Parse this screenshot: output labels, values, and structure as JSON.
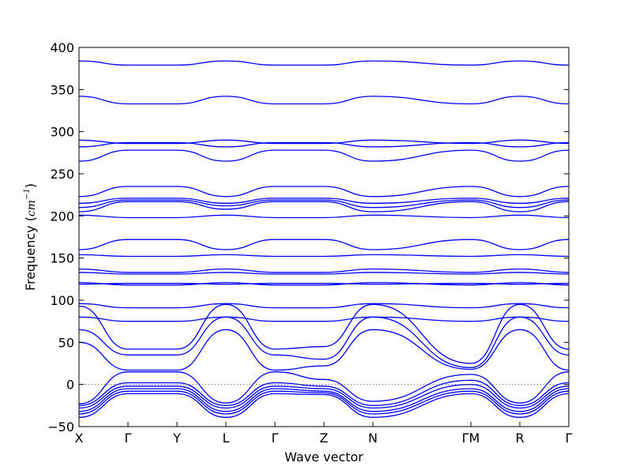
{
  "chart_data": {
    "type": "line",
    "title": "",
    "xlabel": "Wave vector",
    "ylabel_prefix": "Frequency (",
    "ylabel_unit_base": "cm",
    "ylabel_unit_exp": "−1",
    "ylabel_suffix": ")",
    "ylim": [
      -50,
      400
    ],
    "yticks": [
      -50,
      0,
      50,
      100,
      150,
      200,
      250,
      300,
      350,
      400
    ],
    "ytick_labels": [
      "−50",
      "0",
      "50",
      "100",
      "150",
      "200",
      "250",
      "300",
      "350",
      "400"
    ],
    "grid": false,
    "zero_line": true,
    "line_color": "#0000ff",
    "xpoints": [
      {
        "label": "X",
        "x": 0.0
      },
      {
        "label": "Γ",
        "x": 0.1
      },
      {
        "label": "Y",
        "x": 0.2
      },
      {
        "label": "L",
        "x": 0.3
      },
      {
        "label": "Γ",
        "x": 0.4
      },
      {
        "label": "Z",
        "x": 0.5
      },
      {
        "label": "N",
        "x": 0.6
      },
      {
        "label": "ΓM",
        "x": 0.8
      },
      {
        "label": "R",
        "x": 0.9
      },
      {
        "label": "Γ",
        "x": 1.0
      }
    ],
    "series": [
      {
        "values": [
          384,
          379,
          379,
          384,
          379,
          379,
          384,
          379,
          384,
          379
        ]
      },
      {
        "values": [
          342,
          333,
          333,
          342,
          333,
          333,
          342,
          333,
          342,
          333
        ]
      },
      {
        "values": [
          290,
          286,
          286,
          290,
          286,
          286,
          290,
          286,
          290,
          286
        ]
      },
      {
        "values": [
          282,
          287,
          287,
          282,
          287,
          287,
          282,
          287,
          282,
          287
        ]
      },
      {
        "values": [
          265,
          278,
          278,
          265,
          278,
          278,
          265,
          278,
          265,
          278
        ]
      },
      {
        "values": [
          223,
          235,
          235,
          223,
          235,
          235,
          223,
          235,
          223,
          235
        ]
      },
      {
        "values": [
          215,
          221,
          221,
          215,
          221,
          221,
          215,
          221,
          215,
          221
        ]
      },
      {
        "values": [
          210,
          219,
          219,
          212,
          219,
          219,
          210,
          219,
          210,
          219
        ]
      },
      {
        "values": [
          205,
          217,
          217,
          208,
          217,
          217,
          205,
          217,
          205,
          217
        ]
      },
      {
        "values": [
          201,
          198,
          198,
          201,
          198,
          198,
          201,
          198,
          201,
          198
        ]
      },
      {
        "values": [
          160,
          172,
          172,
          160,
          172,
          172,
          160,
          172,
          160,
          172
        ]
      },
      {
        "values": [
          154,
          152,
          152,
          154,
          152,
          152,
          154,
          152,
          154,
          152
        ]
      },
      {
        "values": [
          137,
          133,
          133,
          137,
          133,
          133,
          137,
          133,
          137,
          133
        ]
      },
      {
        "values": [
          133,
          131,
          131,
          133,
          131,
          131,
          133,
          131,
          133,
          131
        ]
      },
      {
        "values": [
          121,
          118,
          118,
          121,
          118,
          118,
          121,
          118,
          121,
          118
        ]
      },
      {
        "values": [
          119,
          120,
          120,
          119,
          120,
          120,
          119,
          120,
          119,
          120
        ]
      },
      {
        "values": [
          96,
          91,
          91,
          96,
          91,
          91,
          96,
          91,
          96,
          91
        ]
      },
      {
        "values": [
          80,
          75,
          75,
          80,
          75,
          75,
          80,
          75,
          80,
          75
        ]
      },
      {
        "values": [
          93,
          42,
          42,
          95,
          42,
          45,
          95,
          25,
          95,
          42
        ]
      },
      {
        "values": [
          65,
          35,
          35,
          80,
          35,
          30,
          80,
          20,
          80,
          35
        ]
      },
      {
        "values": [
          50,
          17,
          17,
          65,
          17,
          22,
          65,
          18,
          65,
          17
        ]
      },
      {
        "values": [
          -23,
          15,
          15,
          -22,
          15,
          6,
          -20,
          12,
          -22,
          15
        ]
      },
      {
        "values": [
          -25,
          2,
          2,
          -25,
          2,
          -2,
          -25,
          5,
          -25,
          2
        ]
      },
      {
        "values": [
          -28,
          -2,
          -2,
          -28,
          -2,
          -5,
          -28,
          0,
          -28,
          -2
        ]
      },
      {
        "values": [
          -32,
          -5,
          -5,
          -32,
          -5,
          -8,
          -32,
          -5,
          -32,
          -5
        ]
      },
      {
        "values": [
          -35,
          -8,
          -8,
          -35,
          -8,
          -10,
          -35,
          -8,
          -35,
          -8
        ]
      },
      {
        "values": [
          -39,
          -11,
          -11,
          -39,
          -11,
          -12,
          -39,
          -11,
          -39,
          -11
        ]
      }
    ]
  }
}
